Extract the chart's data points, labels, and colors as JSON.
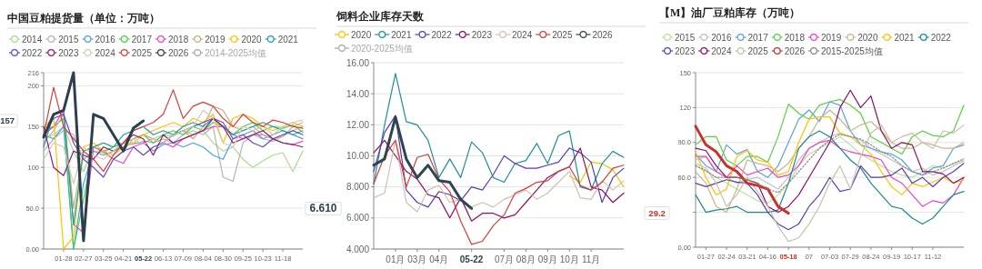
{
  "chart_data": [
    {
      "type": "line",
      "title": "中国豆粕提货量（单位：万吨）",
      "legend": "top",
      "grid": "y",
      "categories": [
        null,
        null,
        "01-28",
        null,
        "02-27",
        null,
        "03-25",
        null,
        "04-21",
        null,
        "05-22",
        null,
        "06-13",
        null,
        "07-09",
        null,
        "08-04",
        null,
        "08-30",
        null,
        "09-25",
        null,
        "10-23",
        null,
        "11-18",
        null,
        null
      ],
      "ylim": [
        0,
        216
      ],
      "yticks": [
        {
          "value": 0,
          "label": "0.00"
        },
        {
          "value": 50,
          "label": "50.0"
        },
        100,
        150,
        200,
        216
      ],
      "annotations": [
        "157"
      ],
      "series": [
        {
          "name": "2014",
          "color": "#a8dc8c",
          "values": [
            135,
            140,
            150,
            120,
            95,
            125,
            130,
            125,
            130,
            135,
            140,
            135,
            140,
            138,
            145,
            140,
            145,
            130,
            120,
            125,
            110,
            100,
            108,
            115,
            118,
            95,
            120
          ]
        },
        {
          "name": "2015",
          "color": "#b4b4b4",
          "values": [
            120,
            135,
            145,
            140,
            110,
            120,
            118,
            125,
            130,
            128,
            132,
            130,
            135,
            130,
            140,
            145,
            140,
            150,
            88,
            83,
            130,
            140,
            135,
            132,
            138,
            150,
            155
          ]
        },
        {
          "name": "2016",
          "color": "#4aa0e6",
          "values": [
            140,
            135,
            150,
            0,
            80,
            120,
            115,
            120,
            125,
            130,
            130,
            120,
            128,
            130,
            125,
            130,
            125,
            115,
            110,
            135,
            140,
            145,
            135,
            140,
            145,
            140,
            145
          ]
        },
        {
          "name": "2017",
          "color": "#44d444",
          "values": [
            145,
            150,
            160,
            0,
            60,
            125,
            120,
            125,
            130,
            135,
            140,
            130,
            140,
            145,
            140,
            150,
            145,
            155,
            150,
            140,
            150,
            155,
            145,
            150,
            148,
            152,
            143
          ]
        },
        {
          "name": "2018",
          "color": "#f040c8",
          "values": [
            140,
            150,
            170,
            30,
            20,
            125,
            120,
            110,
            105,
            125,
            130,
            135,
            130,
            125,
            135,
            140,
            145,
            150,
            150,
            140,
            135,
            140,
            140,
            135,
            130,
            128,
            132
          ]
        },
        {
          "name": "2019",
          "color": "#c8ae7c",
          "values": [
            130,
            145,
            165,
            50,
            120,
            125,
            118,
            110,
            120,
            135,
            140,
            135,
            130,
            140,
            145,
            135,
            150,
            175,
            170,
            150,
            145,
            150,
            140,
            135,
            138,
            145,
            150
          ]
        },
        {
          "name": "2020",
          "color": "#ffc000",
          "values": [
            150,
            160,
            0,
            15,
            125,
            130,
            120,
            115,
            125,
            130,
            140,
            145,
            150,
            155,
            150,
            160,
            155,
            165,
            130,
            160,
            165,
            160,
            150,
            145,
            150,
            155,
            150
          ]
        },
        {
          "name": "2021",
          "color": "#1e9ea6",
          "values": [
            125,
            165,
            170,
            30,
            120,
            125,
            130,
            125,
            140,
            145,
            150,
            140,
            145,
            140,
            150,
            155,
            150,
            160,
            150,
            140,
            145,
            150,
            155,
            150,
            145,
            140,
            135
          ]
        },
        {
          "name": "2022",
          "color": "#6048c0",
          "values": [
            140,
            160,
            165,
            130,
            110,
            100,
            88,
            110,
            120,
            125,
            115,
            125,
            130,
            140,
            145,
            150,
            155,
            160,
            155,
            135,
            140,
            130,
            125,
            135,
            140,
            145,
            140
          ]
        },
        {
          "name": "2023",
          "color": "#8c1c6c",
          "values": [
            150,
            100,
            90,
            120,
            115,
            110,
            125,
            120,
            130,
            140,
            135,
            115,
            140,
            130,
            135,
            140,
            145,
            160,
            150,
            130,
            135,
            140,
            145,
            135,
            130,
            128,
            125
          ]
        },
        {
          "name": "2024",
          "color": "#d8c8b4",
          "values": [
            110,
            130,
            125,
            80,
            125,
            115,
            110,
            120,
            130,
            135,
            128,
            135,
            130,
            140,
            145,
            150,
            170,
            160,
            130,
            125,
            150,
            145,
            150,
            140,
            150,
            155,
            158
          ]
        },
        {
          "name": "2025",
          "color": "#d63c3c",
          "values": [
            140,
            198,
            150,
            135,
            120,
            110,
            95,
            115,
            130,
            145,
            150,
            155,
            165,
            195,
            160,
            175,
            180,
            175,
            160,
            150,
            165,
            155,
            150,
            158,
            155,
            150,
            148
          ]
        },
        {
          "name": "2026",
          "color": "#2c3e50",
          "values": [
            137,
            165,
            170,
            216,
            10,
            165,
            160,
            140,
            120,
            148,
            157,
            null,
            null,
            null,
            null,
            null,
            null,
            null,
            null,
            null,
            null,
            null,
            null,
            null,
            null,
            null,
            null
          ]
        },
        {
          "name": "2014-2025均值",
          "color": "#a8a8a8",
          "values": [
            null,
            null,
            null,
            null,
            null,
            null,
            null,
            null,
            null,
            null,
            null,
            null,
            null,
            null,
            null,
            null,
            null,
            null,
            null,
            null,
            null,
            null,
            null,
            null,
            null,
            null,
            null
          ]
        }
      ]
    },
    {
      "type": "line",
      "title": "饲料企业库存天数",
      "legend": "top",
      "grid": "y",
      "categories": [
        null,
        null,
        "01月",
        null,
        "03月",
        null,
        "04月",
        null,
        null,
        "05-22",
        null,
        null,
        "07月",
        null,
        "08月",
        null,
        "09月",
        null,
        "10月",
        null,
        "11月",
        null,
        null,
        null
      ],
      "ylim": [
        4,
        16
      ],
      "yticks": [
        {
          "value": 4,
          "label": "4.000"
        },
        {
          "value": 6,
          "label": "6.000"
        },
        {
          "value": 8,
          "label": "8.000"
        },
        {
          "value": 10,
          "label": "10.00"
        },
        {
          "value": 12,
          "label": "12.00"
        },
        {
          "value": 14,
          "label": "14.00"
        },
        {
          "value": 16,
          "label": "16.00"
        }
      ],
      "annotations": [
        "6.610"
      ],
      "series": [
        {
          "name": "2020",
          "color": "#ffc000",
          "values": [
            null,
            null,
            null,
            null,
            null,
            null,
            null,
            null,
            null,
            null,
            null,
            null,
            null,
            null,
            null,
            null,
            null,
            null,
            8.7,
            8.3,
            9.6,
            9.5,
            9.1,
            8.0
          ]
        },
        {
          "name": "2021",
          "color": "#1e8f9a",
          "values": [
            8.2,
            12.0,
            15.3,
            12.2,
            12.0,
            11.0,
            8.6,
            9.8,
            8.6,
            10.9,
            10.2,
            8.6,
            8.3,
            9.5,
            9.7,
            10.8,
            9.5,
            11.3,
            11.6,
            8.0,
            7.8,
            9.5,
            10.3,
            9.9
          ]
        },
        {
          "name": "2022",
          "color": "#5a3cb0",
          "values": [
            9.0,
            11.5,
            12.6,
            7.8,
            7.0,
            6.7,
            7.7,
            7.5,
            7.1,
            8.0,
            7.8,
            8.8,
            10.0,
            9.5,
            9.2,
            9.2,
            9.4,
            9.6,
            10.5,
            10.2,
            9.6,
            7.0,
            8.6,
            9.2
          ]
        },
        {
          "name": "2023",
          "color": "#8a1060",
          "values": [
            10.2,
            11.0,
            10.0,
            9.0,
            8.5,
            7.5,
            7.3,
            6.0,
            7.3,
            5.8,
            6.3,
            6.3,
            6.0,
            6.2,
            7.0,
            7.8,
            8.6,
            9.0,
            9.3,
            10.5,
            8.0,
            7.8,
            7.0,
            7.6
          ]
        },
        {
          "name": "2024",
          "color": "#d0c0a8",
          "values": [
            7.3,
            7.6,
            11.0,
            7.0,
            6.4,
            7.8,
            8.1,
            7.0,
            7.2,
            6.7,
            7.0,
            6.7,
            7.2,
            7.5,
            7.8,
            7.2,
            7.6,
            8.3,
            9.0,
            7.3,
            7.2,
            8.4,
            7.8,
            8.4
          ]
        },
        {
          "name": "2025",
          "color": "#d43c3c",
          "values": [
            8.2,
            10.0,
            11.0,
            8.0,
            9.9,
            10.1,
            8.5,
            7.7,
            5.8,
            4.3,
            4.5,
            5.5,
            6.2,
            7.6,
            7.9,
            8.3,
            8.4,
            9.0,
            9.3,
            8.1,
            7.8,
            8.3,
            9.2,
            9.4
          ]
        },
        {
          "name": "2026",
          "color": "#2e4450",
          "values": [
            9.4,
            9.8,
            12.5,
            9.8,
            8.6,
            9.4,
            8.4,
            8.3,
            7.2,
            6.61,
            null,
            null,
            null,
            null,
            null,
            null,
            null,
            null,
            null,
            null,
            null,
            null,
            null,
            null
          ]
        },
        {
          "name": "2020-2025均值",
          "color": "#a8a8a8",
          "values": [
            null,
            null,
            null,
            null,
            null,
            null,
            null,
            null,
            null,
            null,
            null,
            null,
            null,
            null,
            null,
            null,
            null,
            null,
            null,
            null,
            null,
            null,
            null,
            null
          ]
        }
      ]
    },
    {
      "type": "line",
      "title": "【M】油厂豆粕库存（万吨）",
      "legend": "top",
      "grid": "y",
      "categories": [
        null,
        "01-27",
        null,
        "02-24",
        null,
        "03-21",
        null,
        "04-16",
        null,
        "05-18",
        null,
        "07",
        null,
        "07-03",
        null,
        "07-29",
        null,
        "08-24",
        null,
        "09-19",
        null,
        "10-17",
        null,
        "11-12",
        null,
        null,
        null
      ],
      "ylim": [
        0,
        150
      ],
      "yticks": [
        {
          "value": 0,
          "label": "0.00"
        },
        {
          "value": 30,
          "label": null
        },
        {
          "value": 60,
          "label": "60.0"
        },
        {
          "value": 90,
          "label": "90.0"
        },
        120,
        150
      ],
      "annotations": [
        "29.2"
      ],
      "series": [
        {
          "name": "2015",
          "color": "#b8e0a0",
          "values": [
            70,
            65,
            60,
            55,
            50,
            45,
            40,
            38,
            45,
            55,
            70,
            80,
            85,
            90,
            95,
            88,
            80,
            75,
            70,
            65,
            62,
            60,
            65,
            70,
            68,
            72,
            75
          ]
        },
        {
          "name": "2016",
          "color": "#c0c0c0",
          "values": [
            75,
            78,
            65,
            60,
            55,
            58,
            60,
            55,
            50,
            60,
            75,
            85,
            90,
            95,
            98,
            95,
            92,
            85,
            80,
            75,
            70,
            65,
            68,
            62,
            65,
            70,
            74
          ]
        },
        {
          "name": "2017",
          "color": "#5aa0e0",
          "values": [
            80,
            70,
            65,
            88,
            80,
            84,
            65,
            60,
            70,
            90,
            110,
            118,
            108,
            125,
            122,
            100,
            88,
            85,
            82,
            80,
            75,
            65,
            62,
            68,
            70,
            85,
            88
          ]
        },
        {
          "name": "2018",
          "color": "#5ad040",
          "values": [
            88,
            95,
            95,
            75,
            70,
            78,
            78,
            73,
            95,
            123,
            115,
            110,
            122,
            125,
            127,
            122,
            115,
            95,
            90,
            85,
            80,
            95,
            100,
            96,
            95,
            100,
            122
          ]
        },
        {
          "name": "2019",
          "color": "#f040c0",
          "values": [
            78,
            78,
            65,
            60,
            70,
            62,
            65,
            68,
            60,
            62,
            70,
            85,
            90,
            92,
            85,
            82,
            80,
            78,
            75,
            60,
            55,
            45,
            35,
            40,
            38,
            45,
            60
          ]
        },
        {
          "name": "2020",
          "color": "#c8b48c",
          "values": [
            65,
            55,
            35,
            30,
            50,
            75,
            72,
            70,
            65,
            72,
            85,
            95,
            110,
            118,
            110,
            100,
            105,
            108,
            100,
            90,
            85,
            85,
            90,
            88,
            85,
            85,
            90
          ]
        },
        {
          "name": "2021",
          "color": "#ffc000",
          "values": [
            82,
            60,
            45,
            50,
            78,
            83,
            75,
            73,
            62,
            65,
            90,
            110,
            112,
            112,
            98,
            95,
            88,
            80,
            65,
            52,
            45,
            55,
            52,
            56,
            60,
            55,
            58
          ]
        },
        {
          "name": "2022",
          "color": "#1a8a90",
          "values": [
            45,
            30,
            32,
            33,
            35,
            30,
            30,
            30,
            32,
            55,
            85,
            95,
            100,
            95,
            85,
            75,
            68,
            55,
            45,
            35,
            33,
            25,
            20,
            25,
            35,
            45,
            48
          ]
        },
        {
          "name": "2023",
          "color": "#5a40b0",
          "values": [
            55,
            52,
            55,
            58,
            56,
            55,
            45,
            30,
            20,
            15,
            20,
            35,
            45,
            60,
            48,
            50,
            70,
            60,
            60,
            62,
            68,
            55,
            60,
            52,
            60,
            65,
            72
          ]
        },
        {
          "name": "2024",
          "color": "#8a1060",
          "values": [
            85,
            83,
            70,
            60,
            60,
            58,
            55,
            35,
            30,
            35,
            45,
            60,
            75,
            90,
            120,
            135,
            120,
            130,
            100,
            85,
            90,
            88,
            65,
            65,
            63,
            55,
            60
          ]
        },
        {
          "name": "2025",
          "color": "#cdbfa8",
          "values": [
            72,
            68,
            55,
            35,
            45,
            60,
            48,
            35,
            18,
            5,
            8,
            20,
            35,
            55,
            70,
            50,
            78,
            98,
            105,
            90,
            95,
            98,
            90,
            85,
            100,
            98,
            105
          ]
        },
        {
          "name": "2026",
          "color": "#c83228",
          "values": [
            104,
            88,
            82,
            70,
            65,
            55,
            53,
            50,
            35,
            29.2,
            null,
            null,
            null,
            null,
            null,
            null,
            null,
            null,
            null,
            null,
            null,
            null,
            null,
            null,
            null,
            null,
            null
          ]
        },
        {
          "name": "2015-2025均值",
          "color": "#888888",
          "line_style": "dotted",
          "values": [
            70,
            66,
            60,
            60,
            60,
            58,
            55,
            50,
            47,
            55,
            65,
            75,
            85,
            92,
            97,
            95,
            93,
            88,
            82,
            78,
            70,
            65,
            62,
            65,
            68,
            72,
            76
          ]
        }
      ]
    }
  ]
}
